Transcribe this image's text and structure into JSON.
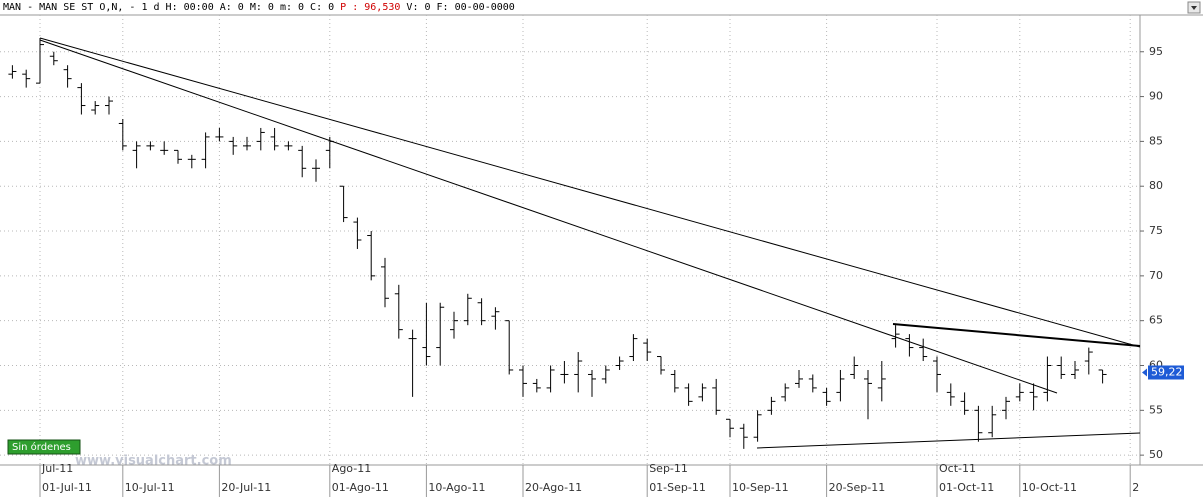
{
  "header": {
    "prefix": "MAN - MAN SE ST O,N, -  1 d H: 00:00 A: 0 M: 0 m: 0 C: 0",
    "price": "P : 96,530",
    "suffix": "V: 0 F: 00-00-0000"
  },
  "badge": "Sin órdenes",
  "watermark": "www.visualchart.com",
  "chart_data": {
    "type": "ohlc",
    "categories": [
      null,
      null,
      "01-Jul-11",
      null,
      null,
      null,
      null,
      null,
      "10-Jul-11",
      null,
      null,
      null,
      null,
      null,
      null,
      "20-Jul-11",
      null,
      null,
      null,
      null,
      null,
      null,
      null,
      "01-Ago-11",
      null,
      null,
      null,
      null,
      null,
      null,
      "10-Ago-11",
      null,
      null,
      null,
      null,
      null,
      null,
      "20-Ago-11",
      null,
      null,
      null,
      null,
      null,
      null,
      null,
      null,
      "01-Sep-11",
      null,
      null,
      null,
      null,
      null,
      "10-Sep-11",
      null,
      null,
      null,
      null,
      null,
      null,
      "20-Sep-11",
      null,
      null,
      null,
      null,
      null,
      null,
      null,
      "01-Oct-11",
      null,
      null,
      null,
      null,
      null,
      "10-Oct-11",
      null,
      null,
      null,
      null,
      null,
      null,
      null,
      "2"
    ],
    "months": [
      null,
      null,
      "Jul-11",
      null,
      null,
      null,
      null,
      null,
      null,
      null,
      null,
      null,
      null,
      null,
      null,
      null,
      null,
      null,
      null,
      null,
      null,
      null,
      null,
      "Ago-11",
      null,
      null,
      null,
      null,
      null,
      null,
      null,
      null,
      null,
      null,
      null,
      null,
      null,
      null,
      null,
      null,
      null,
      null,
      null,
      null,
      null,
      null,
      "Sep-11",
      null,
      null,
      null,
      null,
      null,
      null,
      null,
      null,
      null,
      null,
      null,
      null,
      null,
      null,
      null,
      null,
      null,
      null,
      null,
      null,
      "Oct-11",
      null,
      null,
      null,
      null,
      null,
      null,
      null,
      null,
      null,
      null,
      null,
      null,
      null,
      null
    ],
    "open": [
      92.5,
      92.5,
      91.5,
      94.5,
      93,
      91,
      88.5,
      89,
      87,
      84,
      84.5,
      84,
      84,
      83,
      83,
      85.5,
      85,
      84.5,
      85,
      85.5,
      84.5,
      84,
      82,
      84,
      80,
      76,
      74.5,
      71,
      68,
      63,
      62,
      62,
      64,
      65,
      67,
      65.5,
      65,
      59.5,
      58,
      57.5,
      59,
      59,
      59,
      58.5,
      60,
      61,
      62.5,
      61,
      59,
      57.5,
      56.5,
      57.5,
      54,
      53,
      52,
      55,
      56.5,
      58,
      58.5,
      57,
      57,
      59,
      58.5,
      57.5,
      63,
      63,
      62,
      60.5,
      57,
      56,
      55,
      52.5,
      55,
      56.5,
      57,
      57,
      60,
      59,
      60.5,
      59.5,
      null,
      null
    ],
    "high": [
      93.5,
      93,
      96.5,
      95,
      93.5,
      91.5,
      89.5,
      90,
      87.5,
      85,
      85,
      85,
      84,
      83.5,
      86,
      86.5,
      85.5,
      85.5,
      86.5,
      86.5,
      85,
      84.5,
      83,
      85.5,
      80,
      76.5,
      75,
      72,
      69,
      64,
      67,
      67,
      66,
      68,
      67.5,
      66.5,
      65,
      60,
      58.5,
      60,
      60.5,
      61.5,
      59.5,
      60,
      61,
      63.5,
      63,
      61,
      59.5,
      58,
      58,
      58.5,
      54,
      53.5,
      55,
      56.5,
      58,
      59.5,
      59,
      57.5,
      59.5,
      61,
      59.5,
      60.5,
      64.5,
      63.5,
      63,
      61,
      58,
      57,
      55.5,
      55.5,
      56.5,
      58,
      58,
      61,
      61,
      60.5,
      62,
      59.5,
      null,
      null
    ],
    "low": [
      92,
      91,
      91.5,
      93.5,
      91,
      88,
      88,
      88,
      84,
      82,
      84,
      83.5,
      82.5,
      82,
      82,
      85,
      83.5,
      84,
      84,
      84,
      84,
      81,
      80.5,
      82,
      76,
      73,
      69.5,
      66.5,
      63,
      56.5,
      60,
      60,
      63,
      64.5,
      64.5,
      64,
      59,
      56.5,
      57,
      57,
      58,
      57,
      56.5,
      58,
      59.5,
      60.5,
      60.5,
      59,
      57,
      55.5,
      56,
      54.5,
      52,
      50.7,
      51.5,
      54.5,
      56,
      57.5,
      57,
      55.5,
      56,
      58.5,
      54,
      56,
      62,
      61,
      60.5,
      57,
      55.5,
      54.5,
      51.5,
      52,
      54,
      56,
      55,
      56,
      58.5,
      58.5,
      59,
      58,
      null,
      null
    ],
    "close": [
      92.8,
      92,
      95.8,
      94,
      92,
      89,
      89,
      89.5,
      84.5,
      84.5,
      84.5,
      84,
      83,
      83,
      85.5,
      85.5,
      84.5,
      84.5,
      86,
      84.5,
      84.5,
      82,
      82,
      85,
      76.5,
      74,
      70,
      67.5,
      64,
      63,
      61,
      66.5,
      65,
      67.5,
      65,
      66,
      59.5,
      58,
      57.5,
      59.5,
      59,
      60.5,
      58.5,
      59.5,
      60.5,
      63,
      61.5,
      59.5,
      57.5,
      56,
      57.5,
      55,
      53,
      52,
      54.5,
      56,
      57.5,
      58.5,
      57.5,
      56,
      58.5,
      60,
      58,
      58.5,
      63.5,
      62,
      61,
      59,
      56.5,
      55,
      52.5,
      54.5,
      56,
      57,
      56.5,
      60,
      59,
      59.5,
      61.5,
      59,
      null,
      null
    ],
    "last_price": 59.22,
    "last_price_label": "59,22",
    "ylim": [
      48.9,
      99.1
    ],
    "yticks": [
      50,
      55,
      60,
      65,
      70,
      75,
      80,
      85,
      90,
      95
    ],
    "grid": true,
    "color": "#000000",
    "price_box_color": "#1e5bd6"
  }
}
